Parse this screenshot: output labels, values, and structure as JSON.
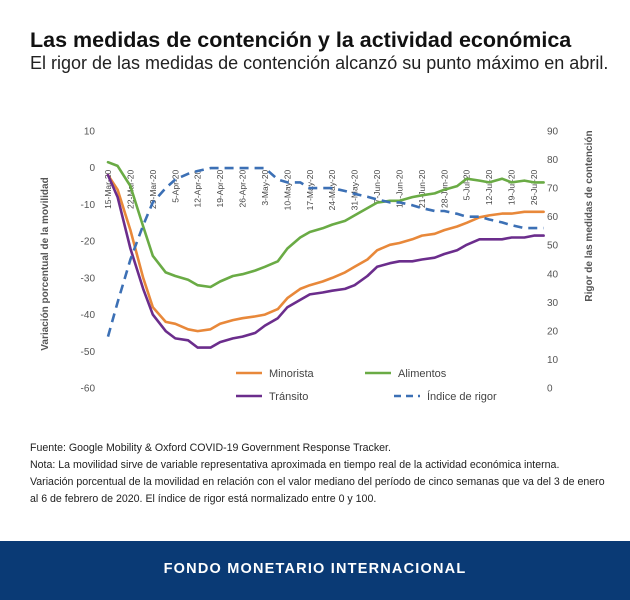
{
  "header": {
    "title": "Las medidas de contención y la actividad económica",
    "subtitle": "El rigor de las medidas de contención alcanzó su punto máximo en abril."
  },
  "notes": {
    "source": "Fuente: Google Mobility & Oxford COVID-19 Government Response Tracker.",
    "note_line1": "Nota: La movilidad sirve de variable representativa aproximada en tiempo real de la actividad económica interna.",
    "note_line2": "Variación porcentual de la movilidad en relación con el valor mediano del período de cinco semanas que va del 3 de enero al 6 de febrero de 2020. El índice de rigor está normalizado entre 0 y 100."
  },
  "footer": {
    "label": "FONDO MONETARIO INTERNACIONAL"
  },
  "chart_data": {
    "type": "line",
    "title": "",
    "ylabel": "Variación porcentual de la movilidad",
    "y2label": "Rigor de las medidas de contención",
    "ylim": [
      -60,
      10
    ],
    "y2lim": [
      0,
      90
    ],
    "yticks": [
      "10",
      "0",
      "-10",
      "-20",
      "-30",
      "-40",
      "-50",
      "-60"
    ],
    "y2ticks": [
      "90",
      "80",
      "70",
      "60",
      "50",
      "40",
      "30",
      "20",
      "10",
      "0"
    ],
    "x_start": "2020-03-15",
    "x_end": "2020-07-26",
    "xticks": [
      "15-Mar-20",
      "22-Mar-20",
      "29-Mar-20",
      "5-Apr-20",
      "12-Apr-20",
      "19-Apr-20",
      "26-Apr-20",
      "3-May-20",
      "10-May-20",
      "17-May-20",
      "24-May-20",
      "31-May-20",
      "7-Jun-20",
      "14-Jun-20",
      "21-Jun-20",
      "28-Jun-20",
      "5-Jul-20",
      "12-Jul-20",
      "19-Jul-20",
      "26-Jul-20"
    ],
    "x": [
      "15-Mar-20",
      "18-Mar-20",
      "22-Mar-20",
      "26-Mar-20",
      "29-Mar-20",
      "2-Apr-20",
      "5-Apr-20",
      "9-Apr-20",
      "12-Apr-20",
      "16-Apr-20",
      "19-Apr-20",
      "23-Apr-20",
      "26-Apr-20",
      "30-Apr-20",
      "3-May-20",
      "7-May-20",
      "10-May-20",
      "14-May-20",
      "17-May-20",
      "21-May-20",
      "24-May-20",
      "28-May-20",
      "31-May-20",
      "4-Jun-20",
      "7-Jun-20",
      "11-Jun-20",
      "14-Jun-20",
      "18-Jun-20",
      "21-Jun-20",
      "25-Jun-20",
      "28-Jun-20",
      "2-Jul-20",
      "5-Jul-20",
      "9-Jul-20",
      "12-Jul-20",
      "16-Jul-20",
      "19-Jul-20",
      "23-Jul-20",
      "26-Jul-20",
      "29-Jul-20"
    ],
    "series": [
      {
        "name": "Minorista",
        "axis": "left",
        "color": "#e8883a",
        "dash": false,
        "values": [
          -2,
          -6,
          -17,
          -30,
          -38,
          -42,
          -42.5,
          -44,
          -44.5,
          -44,
          -42.5,
          -41.5,
          -41,
          -40.5,
          -40,
          -38.5,
          -35.5,
          -33,
          -32,
          -31,
          -30,
          -28.5,
          -27,
          -25,
          -22.5,
          -21,
          -20.5,
          -19.5,
          -18.5,
          -18,
          -17,
          -16,
          -15,
          -13.5,
          -13,
          -12.5,
          -12.5,
          -12,
          -12,
          -12
        ]
      },
      {
        "name": "Alimentos",
        "axis": "left",
        "color": "#6aab45",
        "dash": false,
        "values": [
          1.5,
          0.5,
          -5,
          -16,
          -24,
          -28.5,
          -29.5,
          -30.5,
          -32,
          -32.5,
          -31,
          -29.5,
          -29,
          -28,
          -27,
          -25.5,
          -22,
          -19,
          -17.5,
          -16.5,
          -15.5,
          -14.5,
          -13,
          -11,
          -9.5,
          -9,
          -9,
          -8,
          -7.5,
          -7,
          -6,
          -5,
          -3,
          -3.5,
          -4,
          -3,
          -4,
          -3.5,
          -4,
          -4
        ]
      },
      {
        "name": "Tránsito",
        "axis": "left",
        "color": "#6b2d8c",
        "dash": false,
        "values": [
          -2,
          -8,
          -22,
          -33,
          -40,
          -44.5,
          -46.5,
          -47,
          -49,
          -49,
          -47.5,
          -46.5,
          -46,
          -45,
          -43,
          -41,
          -38,
          -36,
          -34.5,
          -34,
          -33.5,
          -33,
          -32,
          -29.5,
          -27,
          -26,
          -25.5,
          -25.5,
          -25,
          -24.5,
          -23.5,
          -22.5,
          -21,
          -19.5,
          -19.5,
          -19.5,
          -19,
          -19,
          -18.5,
          -18.5
        ]
      },
      {
        "name": "Índice de rigor",
        "axis": "right",
        "color": "#3c70b5",
        "dash": true,
        "values": [
          18,
          30,
          45,
          57,
          65,
          70,
          73,
          75,
          76,
          77,
          77,
          77,
          77,
          77,
          77,
          73,
          72,
          72,
          70,
          70,
          70,
          69,
          68,
          67,
          66,
          65,
          65,
          64,
          63,
          62,
          62,
          61,
          60,
          60,
          59,
          58,
          57,
          56,
          56,
          56
        ]
      }
    ],
    "legend": "bottom-center",
    "grid": false
  }
}
